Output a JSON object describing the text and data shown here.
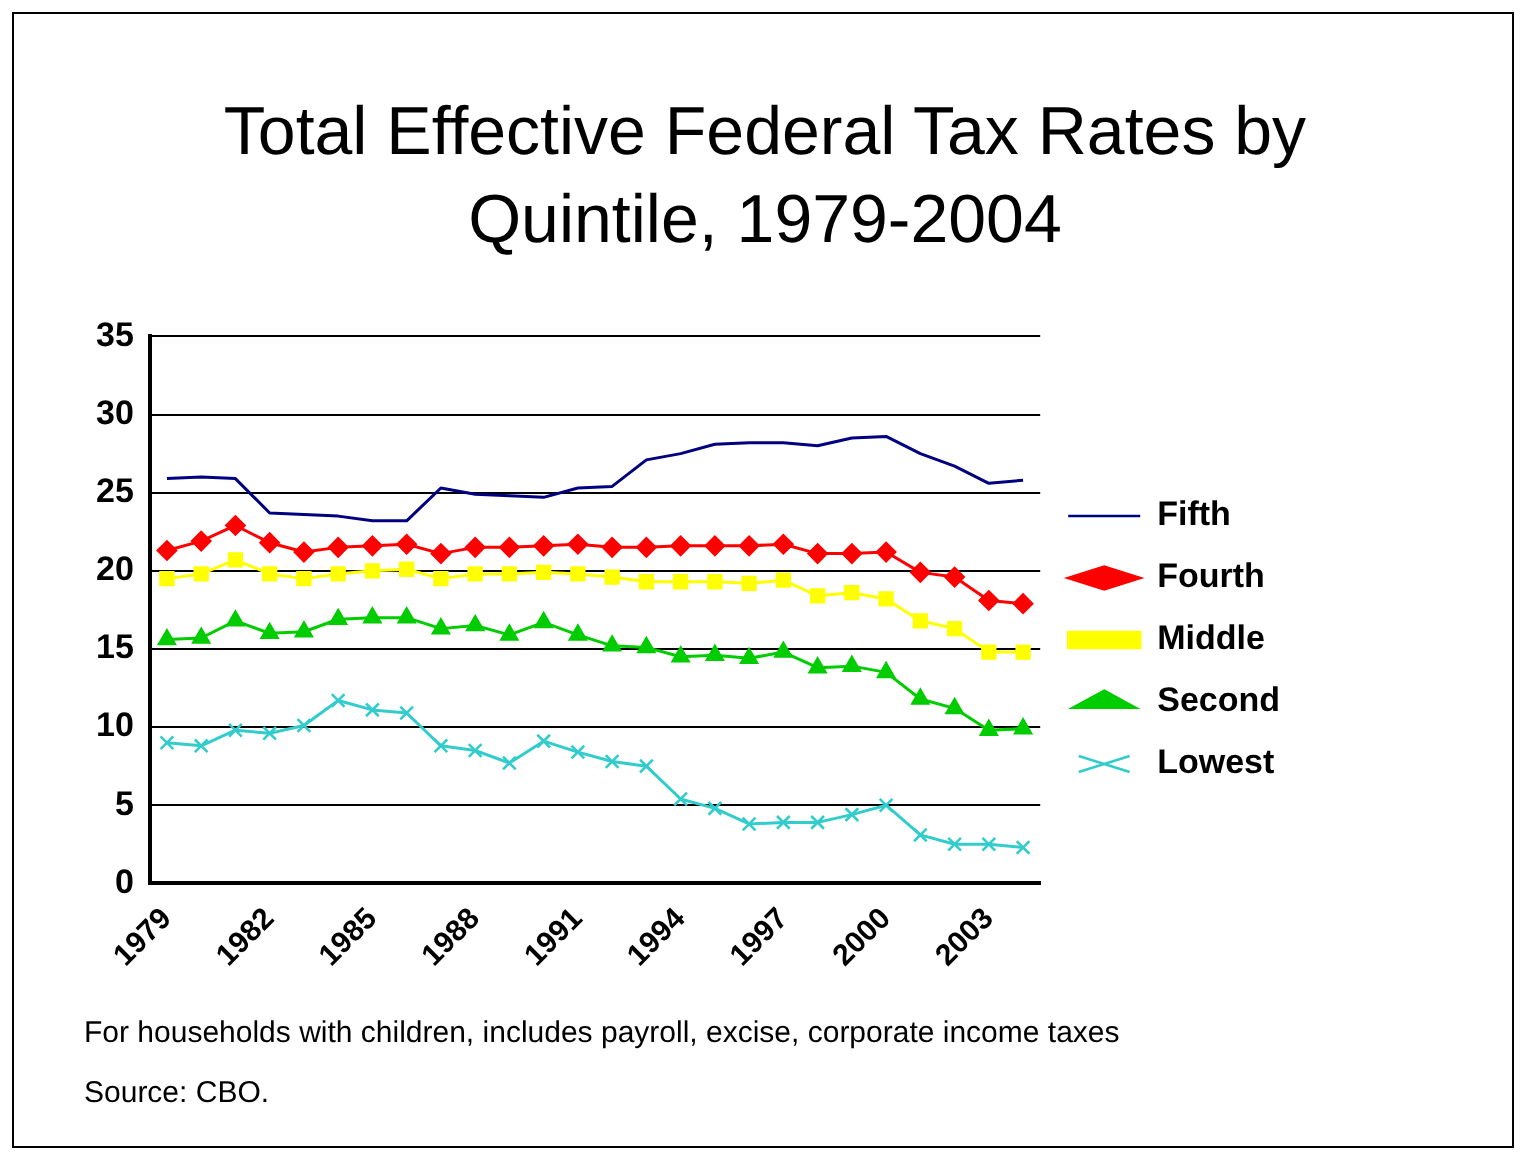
{
  "chart_data": {
    "type": "line",
    "title": "Total Effective Federal Tax Rates by Quintile, 1979-2004",
    "categories": [
      "1979",
      null,
      null,
      "1982",
      null,
      null,
      "1985",
      null,
      null,
      "1988",
      null,
      null,
      "1991",
      null,
      null,
      "1994",
      null,
      null,
      "1997",
      null,
      null,
      "2000",
      null,
      null,
      "2003",
      null
    ],
    "series": [
      {
        "name": "Fifth",
        "color": "#000080",
        "marker": "none",
        "values": [
          25.9,
          26,
          25.9,
          23.7,
          23.6,
          23.5,
          23.2,
          23.2,
          25.3,
          24.9,
          24.8,
          24.7,
          25.3,
          25.4,
          27.1,
          27.5,
          28.1,
          28.2,
          28.2,
          28.0,
          28.5,
          28.6,
          27.5,
          26.7,
          25.6,
          25.8
        ]
      },
      {
        "name": "Fourth",
        "color": "#ff0000",
        "marker": "diamond",
        "values": [
          21.3,
          21.9,
          22.9,
          21.8,
          21.2,
          21.5,
          21.6,
          21.7,
          21.1,
          21.5,
          21.5,
          21.6,
          21.7,
          21.5,
          21.5,
          21.6,
          21.6,
          21.6,
          21.7,
          21.1,
          21.1,
          21.2,
          19.9,
          19.6,
          18.1,
          17.9
        ]
      },
      {
        "name": "Middle",
        "color": "#ffff00",
        "marker": "square",
        "values": [
          19.5,
          19.8,
          20.7,
          19.8,
          19.5,
          19.8,
          20.0,
          20.1,
          19.5,
          19.8,
          19.8,
          19.9,
          19.8,
          19.6,
          19.3,
          19.3,
          19.3,
          19.2,
          19.4,
          18.4,
          18.6,
          18.2,
          16.8,
          16.3,
          14.8,
          14.8
        ]
      },
      {
        "name": "Second",
        "color": "#00cc00",
        "marker": "triangle",
        "values": [
          15.6,
          15.7,
          16.8,
          16.0,
          16.1,
          16.9,
          17.0,
          17.0,
          16.3,
          16.5,
          15.9,
          16.7,
          15.9,
          15.2,
          15.1,
          14.5,
          14.6,
          14.4,
          14.8,
          13.8,
          13.9,
          13.5,
          11.8,
          11.2,
          9.8,
          9.9
        ]
      },
      {
        "name": "Lowest",
        "color": "#33cccc",
        "marker": "cross",
        "values": [
          9.0,
          8.8,
          9.8,
          9.6,
          10.1,
          11.7,
          11.1,
          10.9,
          8.8,
          8.5,
          7.7,
          9.1,
          8.4,
          7.8,
          7.5,
          5.4,
          4.8,
          3.8,
          3.9,
          3.9,
          4.4,
          5.0,
          3.1,
          2.5,
          2.5,
          2.3
        ]
      }
    ],
    "ylim": [
      0,
      35
    ],
    "yticks": [
      0,
      5,
      10,
      15,
      20,
      25,
      30,
      35
    ],
    "grid": "y",
    "legend": "right",
    "annotations": [
      "For households with children, includes payroll, excise, corporate income taxes",
      "Source: CBO."
    ]
  }
}
